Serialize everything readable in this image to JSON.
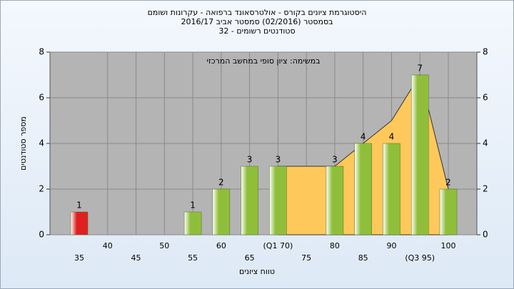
{
  "chart_data": {
    "type": "bar",
    "title": "היסטוגרמת ציונים בקורס - אולטרסאונד ברפואה - עקרונות ושומם",
    "subtitle": "בסמסטר  (02/2016)  סמסטר אביב 2016/17",
    "subtitle2": "סטודנטים רשומים - 32",
    "annotation": "במשימה: ציון סופי במחשב המרכזי",
    "ylabel": "מספר סטודנטים",
    "xlabel": "טווח ציונים",
    "categories": [
      "35",
      "40",
      "45",
      "50",
      "55",
      "60",
      "65",
      "(Q1 70)",
      "75",
      "80",
      "85",
      "90",
      "(Q3 95)",
      "100"
    ],
    "values": [
      1,
      0,
      0,
      0,
      1,
      2,
      3,
      3,
      0,
      3,
      4,
      4,
      7,
      2
    ],
    "colors": [
      "#e02020",
      "#8fbf3a",
      "#8fbf3a",
      "#8fbf3a",
      "#8fbf3a",
      "#8fbf3a",
      "#8fbf3a",
      "#8fbf3a",
      "#8fbf3a",
      "#8fbf3a",
      "#8fbf3a",
      "#8fbf3a",
      "#8fbf3a",
      "#8fbf3a"
    ],
    "area": {
      "color": "#ffc85a",
      "values": [
        null,
        null,
        null,
        null,
        null,
        null,
        null,
        3,
        3,
        3,
        4,
        5,
        7,
        2
      ]
    },
    "ylim": [
      0,
      8
    ],
    "yticks": [
      0,
      2,
      4,
      6,
      8
    ],
    "grid": true
  }
}
